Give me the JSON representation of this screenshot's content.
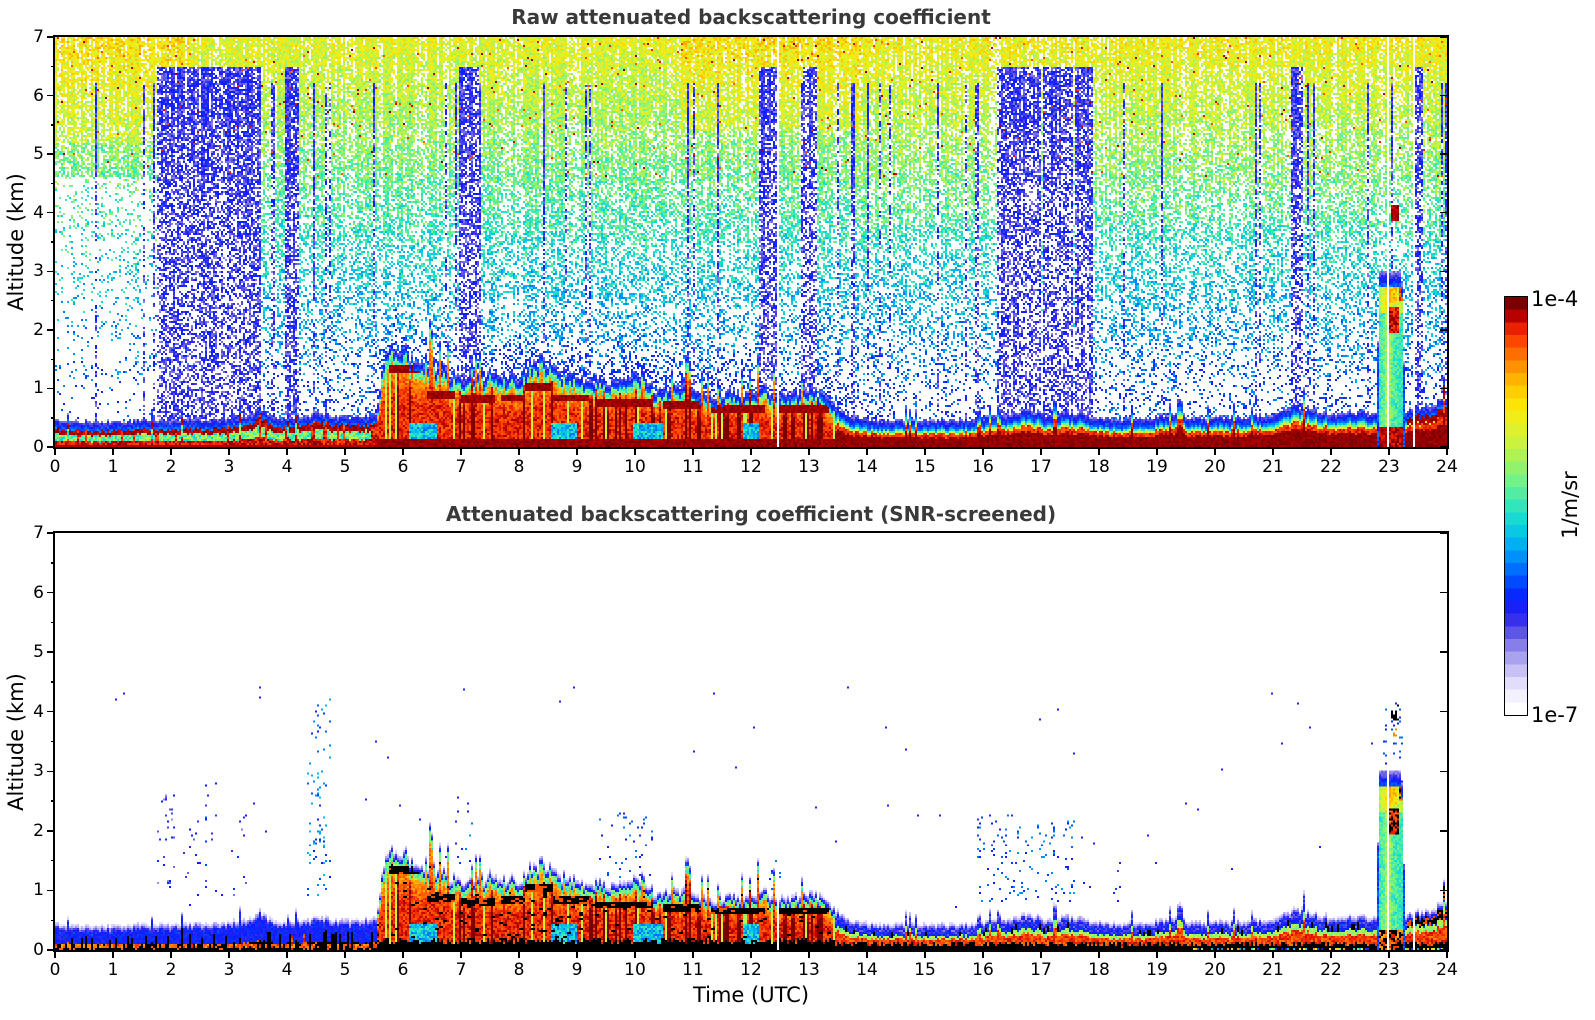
{
  "chart_data": {
    "type": "heatmap",
    "description": "Two time-height lidar curtain plots of attenuated backscattering coefficient over one day",
    "x": {
      "label": "Time (UTC)",
      "min": 0,
      "max": 24,
      "ticks": [
        0,
        1,
        2,
        3,
        4,
        5,
        6,
        7,
        8,
        9,
        10,
        11,
        12,
        13,
        14,
        15,
        16,
        17,
        18,
        19,
        20,
        21,
        22,
        23,
        24
      ]
    },
    "y": {
      "label": "Altitude (km)",
      "min": 0,
      "max": 7,
      "ticks": [
        0,
        1,
        2,
        3,
        4,
        5,
        6,
        7
      ],
      "minor_step": 0.5
    },
    "panels": [
      {
        "id": "raw",
        "title": "Raw attenuated backscattering coefficient",
        "seed": 101
      },
      {
        "id": "screened",
        "title": "Attenuated backscattering coefficient (SNR-screened)",
        "seed": 202
      }
    ],
    "colorbar": {
      "top_label": "1e-4",
      "bottom_label": "1e-7",
      "unit_label": "1/m/sr",
      "scale": "log",
      "vmin": 1e-07,
      "vmax": 0.0001,
      "steps": 33
    },
    "colormap": [
      [
        0.0,
        "#ffffff"
      ],
      [
        0.03,
        "#f4f2fd"
      ],
      [
        0.07,
        "#ddd8f9"
      ],
      [
        0.11,
        "#b9b2f2"
      ],
      [
        0.15,
        "#8f86ea"
      ],
      [
        0.19,
        "#5a52e3"
      ],
      [
        0.23,
        "#2823f0"
      ],
      [
        0.27,
        "#0a1cff"
      ],
      [
        0.31,
        "#0048ff"
      ],
      [
        0.36,
        "#0080ff"
      ],
      [
        0.41,
        "#00b4f0"
      ],
      [
        0.46,
        "#0fd8d8"
      ],
      [
        0.51,
        "#3ce8b4"
      ],
      [
        0.56,
        "#6ff28a"
      ],
      [
        0.61,
        "#a2f25f"
      ],
      [
        0.66,
        "#cdf23c"
      ],
      [
        0.71,
        "#eef01e"
      ],
      [
        0.76,
        "#ffe100"
      ],
      [
        0.81,
        "#ffb400"
      ],
      [
        0.86,
        "#ff8200"
      ],
      [
        0.9,
        "#ff4e00"
      ],
      [
        0.94,
        "#e81e00"
      ],
      [
        0.97,
        "#b40000"
      ],
      [
        1.0,
        "#780000"
      ]
    ],
    "features": {
      "boundary_layer_top_km": [
        [
          0,
          0.3
        ],
        [
          0.5,
          0.28
        ],
        [
          1,
          0.27
        ],
        [
          1.5,
          0.3
        ],
        [
          2,
          0.3
        ],
        [
          2.5,
          0.32
        ],
        [
          3,
          0.33
        ],
        [
          3.4,
          0.42
        ],
        [
          3.55,
          0.52
        ],
        [
          3.7,
          0.38
        ],
        [
          4,
          0.33
        ],
        [
          4.3,
          0.4
        ],
        [
          4.6,
          0.42
        ],
        [
          5,
          0.36
        ],
        [
          5.3,
          0.38
        ],
        [
          5.55,
          0.4
        ],
        [
          5.65,
          1.2
        ],
        [
          5.8,
          1.52
        ],
        [
          6,
          1.5
        ],
        [
          6.2,
          1.42
        ],
        [
          6.5,
          1.28
        ],
        [
          6.8,
          1.1
        ],
        [
          7,
          1.02
        ],
        [
          7.2,
          0.98
        ],
        [
          7.5,
          1.12
        ],
        [
          7.7,
          1.03
        ],
        [
          8,
          1.08
        ],
        [
          8.2,
          1.25
        ],
        [
          8.45,
          1.32
        ],
        [
          8.7,
          1.12
        ],
        [
          9,
          1.02
        ],
        [
          9.3,
          0.98
        ],
        [
          9.6,
          1.0
        ],
        [
          9.9,
          1.08
        ],
        [
          10.15,
          1.12
        ],
        [
          10.35,
          0.82
        ],
        [
          10.6,
          0.85
        ],
        [
          10.9,
          0.88
        ],
        [
          11.1,
          0.8
        ],
        [
          11.35,
          0.72
        ],
        [
          11.6,
          0.78
        ],
        [
          11.9,
          0.75
        ],
        [
          12.2,
          0.88
        ],
        [
          12.45,
          0.72
        ],
        [
          12.7,
          0.75
        ],
        [
          13,
          0.82
        ],
        [
          13.3,
          0.72
        ],
        [
          13.5,
          0.5
        ],
        [
          13.8,
          0.36
        ],
        [
          14.2,
          0.3
        ],
        [
          14.6,
          0.32
        ],
        [
          15,
          0.3
        ],
        [
          15.5,
          0.3
        ],
        [
          16,
          0.34
        ],
        [
          16.4,
          0.38
        ],
        [
          16.8,
          0.48
        ],
        [
          17.1,
          0.38
        ],
        [
          17.4,
          0.46
        ],
        [
          17.7,
          0.4
        ],
        [
          18,
          0.34
        ],
        [
          18.5,
          0.32
        ],
        [
          19,
          0.36
        ],
        [
          19.3,
          0.44
        ],
        [
          19.6,
          0.34
        ],
        [
          20,
          0.34
        ],
        [
          20.5,
          0.36
        ],
        [
          21,
          0.4
        ],
        [
          21.4,
          0.55
        ],
        [
          21.6,
          0.5
        ],
        [
          22,
          0.42
        ],
        [
          22.4,
          0.44
        ],
        [
          22.7,
          0.42
        ],
        [
          23.3,
          0.45
        ],
        [
          23.5,
          0.52
        ],
        [
          23.75,
          0.58
        ],
        [
          24,
          0.68
        ]
      ],
      "cloud_period_utc": [
        5.55,
        13.45
      ],
      "cloud_base_segments": [
        [
          5.75,
          6.3,
          1.3
        ],
        [
          6.4,
          6.9,
          0.85
        ],
        [
          7.0,
          7.6,
          0.78
        ],
        [
          7.7,
          8.1,
          0.8
        ],
        [
          8.1,
          8.6,
          1.0
        ],
        [
          8.6,
          9.2,
          0.8
        ],
        [
          9.3,
          10.3,
          0.72
        ],
        [
          10.5,
          11.15,
          0.68
        ],
        [
          11.3,
          12.25,
          0.62
        ],
        [
          12.5,
          13.35,
          0.62
        ]
      ],
      "cool_pockets_utc": [
        [
          6.1,
          6.6
        ],
        [
          8.55,
          9.0
        ],
        [
          9.95,
          10.5
        ],
        [
          11.85,
          12.15
        ]
      ],
      "noise_blue_bands_utc": [
        [
          1.75,
          3.55
        ],
        [
          3.95,
          4.2
        ],
        [
          6.95,
          7.3
        ],
        [
          12.15,
          12.45
        ],
        [
          12.9,
          13.15
        ],
        [
          16.25,
          17.0
        ],
        [
          17.05,
          17.55
        ],
        [
          17.6,
          17.9
        ],
        [
          21.3,
          21.5
        ],
        [
          23.45,
          23.6
        ]
      ],
      "white_gap_columns_utc": [
        9.0,
        12.47,
        22.62,
        22.98,
        23.31,
        23.43
      ],
      "plume": {
        "t0": 22.78,
        "t1": 23.28,
        "top_km": 2.88,
        "red_blob": {
          "t0": 23.0,
          "t1": 23.18,
          "z0": 1.95,
          "z1": 2.38
        },
        "upper_dot": {
          "t0": 23.05,
          "t1": 23.18,
          "z0": 3.85,
          "z1": 4.12
        }
      },
      "screened_speckle_columns": [
        [
          1.75,
          2.1,
          0.9,
          2.6,
          0.05,
          0.22
        ],
        [
          2.2,
          2.5,
          0.9,
          2.2,
          0.04,
          0.22
        ],
        [
          2.55,
          2.8,
          0.9,
          2.8,
          0.05,
          0.25
        ],
        [
          3.0,
          3.3,
          0.9,
          2.3,
          0.04,
          0.22
        ],
        [
          4.35,
          4.75,
          0.9,
          4.25,
          0.1,
          0.35
        ],
        [
          6.9,
          7.2,
          1.0,
          2.6,
          0.05,
          0.3
        ],
        [
          9.3,
          10.3,
          1.2,
          2.3,
          0.04,
          0.3
        ],
        [
          12.3,
          12.55,
          0.8,
          1.6,
          0.04,
          0.28
        ],
        [
          15.9,
          16.6,
          0.8,
          2.3,
          0.06,
          0.3
        ],
        [
          16.6,
          17.6,
          0.8,
          2.2,
          0.06,
          0.32
        ],
        [
          18.2,
          18.45,
          0.8,
          1.5,
          0.03,
          0.28
        ]
      ]
    }
  }
}
